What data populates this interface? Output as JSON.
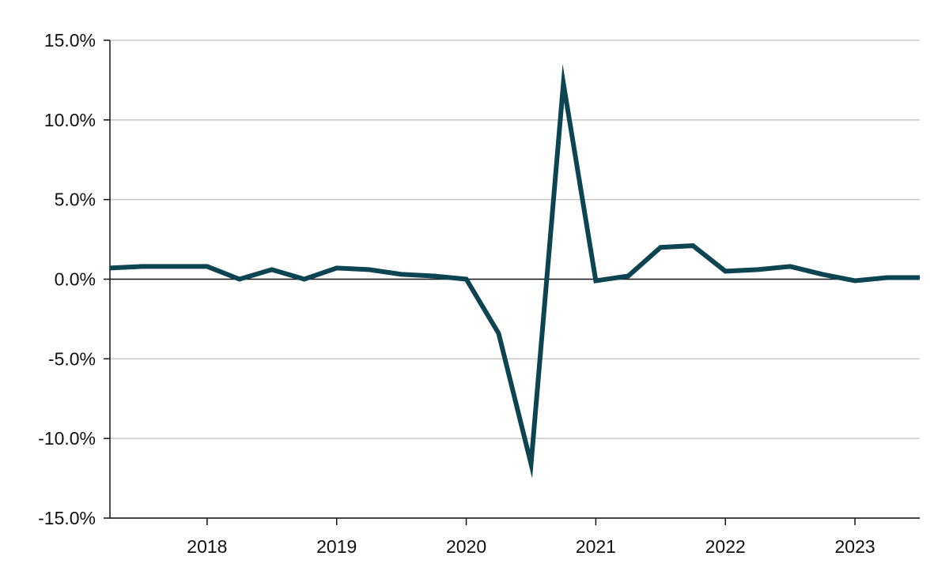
{
  "chart_data": {
    "type": "line",
    "title": "",
    "xlabel": "",
    "ylabel": "",
    "ylim": [
      -15,
      15
    ],
    "y_ticks": [
      -15,
      -10,
      -5,
      0,
      5,
      10,
      15
    ],
    "y_tick_labels": [
      "-15.0%",
      "-10.0%",
      "-5.0%",
      "0.0%",
      "5.0%",
      "10.0%",
      "15.0%"
    ],
    "x_range": [
      "2017-04",
      "2023-07"
    ],
    "x_ticks": [
      "2018-01",
      "2019-01",
      "2020-01",
      "2021-01",
      "2022-01",
      "2023-01"
    ],
    "x_tick_labels": [
      "2018",
      "2019",
      "2020",
      "2021",
      "2022",
      "2023"
    ],
    "grid": "horizontal",
    "color": "#0d4452",
    "series": [
      {
        "x": [
          "2017-04",
          "2017-07",
          "2017-10",
          "2018-01",
          "2018-04",
          "2018-07",
          "2018-10",
          "2019-01",
          "2019-04",
          "2019-07",
          "2019-10",
          "2020-01",
          "2020-04",
          "2020-07",
          "2020-10",
          "2021-01",
          "2021-04",
          "2021-07",
          "2021-10",
          "2022-01",
          "2022-04",
          "2022-07",
          "2022-10",
          "2023-01",
          "2023-04",
          "2023-07"
        ],
        "values": [
          0.7,
          0.8,
          0.8,
          0.8,
          0.0,
          0.6,
          0.0,
          0.7,
          0.6,
          0.3,
          0.2,
          0.0,
          -3.4,
          -11.6,
          12.3,
          -0.1,
          0.2,
          2.0,
          2.1,
          0.5,
          0.6,
          0.8,
          0.3,
          -0.1,
          0.1,
          0.1
        ]
      }
    ]
  }
}
